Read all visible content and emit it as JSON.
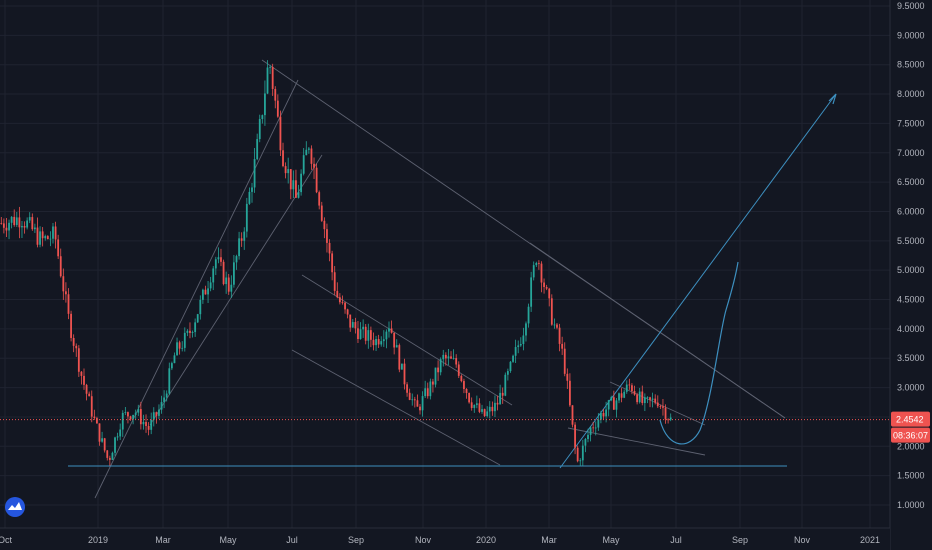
{
  "chart_data": {
    "type": "candlestick",
    "x_tick_labels": [
      "Oct",
      "2019",
      "Mar",
      "May",
      "Jul",
      "Sep",
      "Nov",
      "2020",
      "Mar",
      "May",
      "Jul",
      "Sep",
      "Nov",
      "2021"
    ],
    "y_tick_labels": [
      "9.5000",
      "9.0000",
      "8.5000",
      "8.0000",
      "7.5000",
      "7.0000",
      "6.5000",
      "6.0000",
      "5.5000",
      "5.0000",
      "4.5000",
      "4.0000",
      "3.5000",
      "3.0000",
      "2.5000",
      "2.0000",
      "1.5000",
      "1.0000"
    ],
    "ylim": [
      0.8,
      9.5
    ],
    "y_scale": "linear",
    "grid": true,
    "current_price": {
      "label": "2.4542",
      "value": 2.4542,
      "countdown": "08:36:07"
    },
    "price_path": [
      [
        0.0,
        5.8
      ],
      [
        0.03,
        5.9
      ],
      [
        0.06,
        5.5
      ],
      [
        0.08,
        5.6
      ],
      [
        0.1,
        4.2
      ],
      [
        0.12,
        3.2
      ],
      [
        0.14,
        2.4
      ],
      [
        0.16,
        1.75
      ],
      [
        0.18,
        2.5
      ],
      [
        0.2,
        2.6
      ],
      [
        0.22,
        2.3
      ],
      [
        0.24,
        2.7
      ],
      [
        0.26,
        3.6
      ],
      [
        0.28,
        3.9
      ],
      [
        0.3,
        4.5
      ],
      [
        0.32,
        5.2
      ],
      [
        0.34,
        4.7
      ],
      [
        0.36,
        5.6
      ],
      [
        0.38,
        6.9
      ],
      [
        0.4,
        8.6
      ],
      [
        0.42,
        7.0
      ],
      [
        0.44,
        6.2
      ],
      [
        0.46,
        7.2
      ],
      [
        0.48,
        5.9
      ],
      [
        0.5,
        4.6
      ],
      [
        0.52,
        4.1
      ],
      [
        0.54,
        3.9
      ],
      [
        0.56,
        3.8
      ],
      [
        0.58,
        4.1
      ],
      [
        0.6,
        3.2
      ],
      [
        0.62,
        2.6
      ],
      [
        0.64,
        3.0
      ],
      [
        0.66,
        3.5
      ],
      [
        0.68,
        3.4
      ],
      [
        0.7,
        2.8
      ],
      [
        0.72,
        2.5
      ],
      [
        0.74,
        2.7
      ],
      [
        0.76,
        3.3
      ],
      [
        0.78,
        4.0
      ],
      [
        0.8,
        5.3
      ],
      [
        0.82,
        4.3
      ],
      [
        0.84,
        3.5
      ],
      [
        0.86,
        1.7
      ],
      [
        0.88,
        2.3
      ],
      [
        0.9,
        2.6
      ],
      [
        0.92,
        2.8
      ],
      [
        0.94,
        3.05
      ],
      [
        0.96,
        2.7
      ],
      [
        0.98,
        2.8
      ],
      [
        1.0,
        2.45
      ]
    ]
  }
}
